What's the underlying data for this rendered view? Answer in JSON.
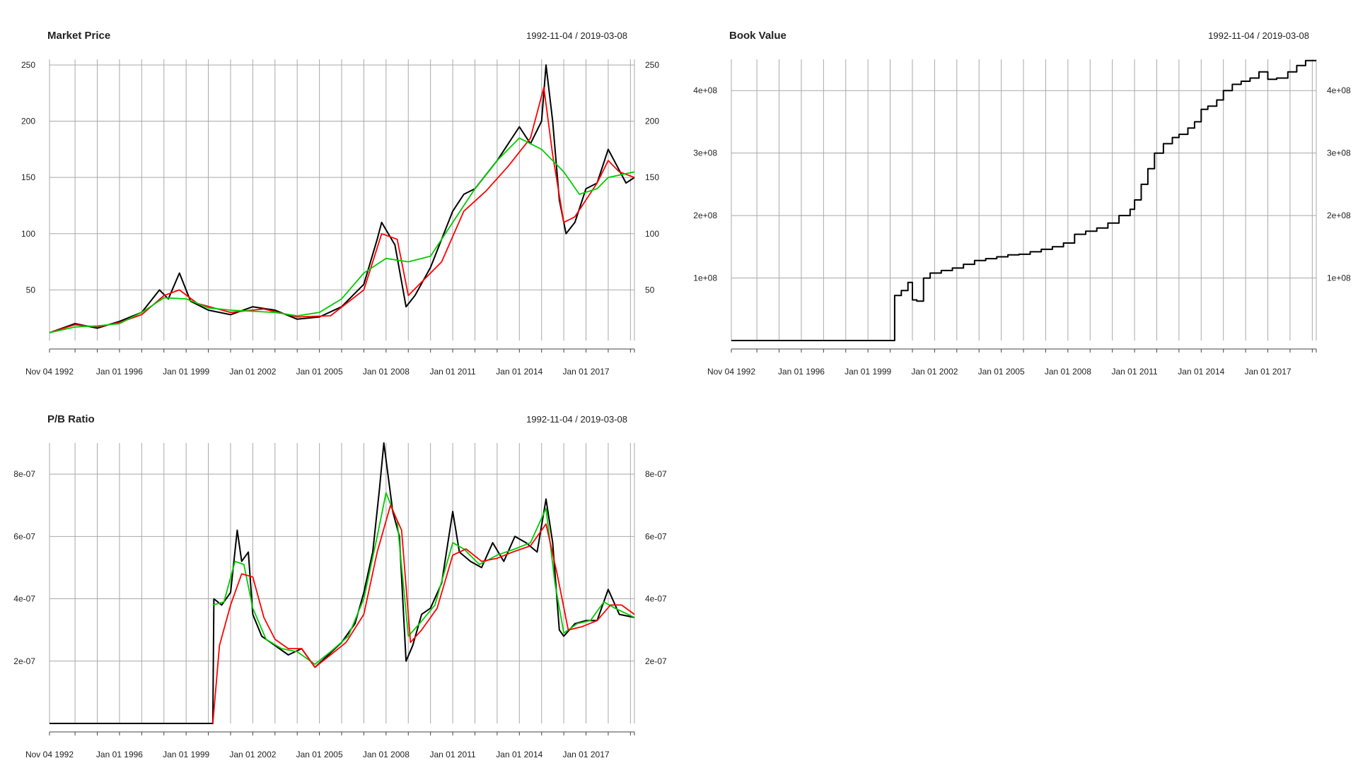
{
  "chart_data": [
    {
      "type": "line",
      "title": "Market Price",
      "date_range": "1992-11-04 / 2019-03-08",
      "x_tick_labels": [
        "Nov 04 1992",
        "Jan 01 1996",
        "Jan 01 1999",
        "Jan 01 2002",
        "Jan 01 2005",
        "Jan 01 2008",
        "Jan 01 2011",
        "Jan 01 2014",
        "Jan 01 2017"
      ],
      "y_tick_labels": [
        "50",
        "100",
        "150",
        "200",
        "250"
      ],
      "y_ticks": [
        50,
        100,
        150,
        200,
        250
      ],
      "ylim": [
        5,
        255
      ],
      "grid": true,
      "series": [
        {
          "color": "#000000",
          "x": [
            1992.85,
            1994.0,
            1995.0,
            1996.0,
            1997.0,
            1997.8,
            1998.2,
            1998.7,
            1999.2,
            2000.0,
            2001.0,
            2002.0,
            2003.0,
            2004.0,
            2005.0,
            2006.0,
            2007.0,
            2007.6,
            2007.8,
            2008.4,
            2008.9,
            2009.3,
            2010.0,
            2011.0,
            2011.5,
            2012.0,
            2013.0,
            2014.0,
            2014.5,
            2015.0,
            2015.2,
            2015.5,
            2015.8,
            2016.1,
            2016.5,
            2017.0,
            2017.5,
            2018.0,
            2018.4,
            2018.8,
            2019.18
          ],
          "y": [
            12,
            20,
            16,
            22,
            30,
            50,
            42,
            65,
            40,
            32,
            28,
            35,
            32,
            24,
            26,
            35,
            55,
            95,
            110,
            90,
            35,
            45,
            70,
            120,
            135,
            140,
            165,
            195,
            180,
            200,
            250,
            200,
            130,
            100,
            110,
            140,
            145,
            175,
            160,
            145,
            150
          ]
        },
        {
          "color": "#ff0000",
          "x": [
            1992.85,
            1994.0,
            1995.0,
            1996.0,
            1997.0,
            1998.0,
            1998.7,
            1999.5,
            2001.0,
            2002.5,
            2004.0,
            2005.5,
            2007.0,
            2007.8,
            2008.5,
            2009.0,
            2009.5,
            2010.5,
            2011.5,
            2012.5,
            2013.5,
            2014.5,
            2015.1,
            2015.5,
            2016.0,
            2016.5,
            2017.5,
            2018.0,
            2018.5,
            2019.18
          ],
          "y": [
            12,
            19,
            17,
            21,
            28,
            45,
            50,
            38,
            30,
            33,
            26,
            27,
            50,
            100,
            95,
            45,
            55,
            75,
            120,
            138,
            160,
            185,
            230,
            170,
            110,
            115,
            145,
            165,
            155,
            150
          ]
        },
        {
          "color": "#00cc00",
          "x": [
            1992.85,
            1994.0,
            1995.0,
            1996.0,
            1997.0,
            1998.0,
            1999.0,
            2000.0,
            2001.0,
            2002.0,
            2003.0,
            2004.0,
            2005.0,
            2006.0,
            2007.0,
            2008.0,
            2009.0,
            2010.0,
            2011.0,
            2012.0,
            2013.0,
            2014.0,
            2015.0,
            2016.0,
            2016.7,
            2017.5,
            2018.0,
            2019.18
          ],
          "y": [
            12,
            17,
            18,
            20,
            30,
            43,
            42,
            34,
            32,
            31,
            30,
            27,
            30,
            42,
            65,
            78,
            75,
            80,
            110,
            140,
            165,
            185,
            175,
            155,
            135,
            140,
            150,
            155
          ]
        }
      ]
    },
    {
      "type": "line",
      "title": "Book Value",
      "date_range": "1992-11-04 / 2019-03-08",
      "x_tick_labels": [
        "Nov 04 1992",
        "Jan 01 1996",
        "Jan 01 1999",
        "Jan 01 2002",
        "Jan 01 2005",
        "Jan 01 2008",
        "Jan 01 2011",
        "Jan 01 2014",
        "Jan 01 2017"
      ],
      "y_tick_labels": [
        "1e+08",
        "2e+08",
        "3e+08",
        "4e+08"
      ],
      "y_ticks": [
        100000000,
        200000000,
        300000000,
        400000000
      ],
      "ylim": [
        0,
        450000000
      ],
      "grid": true,
      "series": [
        {
          "color": "#000000",
          "step": true,
          "x": [
            1992.85,
            2000.2,
            2000.5,
            2000.8,
            2001.0,
            2001.2,
            2001.5,
            2001.8,
            2002.3,
            2002.8,
            2003.3,
            2003.8,
            2004.3,
            2004.8,
            2005.3,
            2005.8,
            2006.3,
            2006.8,
            2007.3,
            2007.8,
            2008.3,
            2008.8,
            2009.3,
            2009.8,
            2010.3,
            2010.8,
            2011.0,
            2011.3,
            2011.6,
            2011.9,
            2012.3,
            2012.7,
            2013.0,
            2013.4,
            2013.7,
            2014.0,
            2014.3,
            2014.7,
            2015.0,
            2015.4,
            2015.8,
            2016.2,
            2016.6,
            2017.0,
            2017.4,
            2017.9,
            2018.3,
            2018.7,
            2019.18
          ],
          "y": [
            0,
            72000000,
            80000000,
            93000000,
            65000000,
            63000000,
            100000000,
            108000000,
            112000000,
            116000000,
            122000000,
            128000000,
            131000000,
            134000000,
            137000000,
            138000000,
            142000000,
            146000000,
            150000000,
            156000000,
            170000000,
            175000000,
            180000000,
            188000000,
            200000000,
            210000000,
            225000000,
            250000000,
            275000000,
            300000000,
            315000000,
            325000000,
            330000000,
            340000000,
            350000000,
            370000000,
            375000000,
            385000000,
            400000000,
            410000000,
            415000000,
            420000000,
            430000000,
            418000000,
            420000000,
            430000000,
            440000000,
            448000000,
            448000000
          ]
        }
      ]
    },
    {
      "type": "line",
      "title": "P/B Ratio",
      "date_range": "1992-11-04 / 2019-03-08",
      "x_tick_labels": [
        "Nov 04 1992",
        "Jan 01 1996",
        "Jan 01 1999",
        "Jan 01 2002",
        "Jan 01 2005",
        "Jan 01 2008",
        "Jan 01 2011",
        "Jan 01 2014",
        "Jan 01 2017"
      ],
      "y_tick_labels": [
        "2e-07",
        "4e-07",
        "6e-07",
        "8e-07"
      ],
      "y_ticks": [
        2e-07,
        4e-07,
        6e-07,
        8e-07
      ],
      "ylim": [
        0,
        9e-07
      ],
      "grid": true,
      "series": [
        {
          "color": "#000000",
          "x": [
            1992.85,
            2000.2,
            2000.25,
            2000.6,
            2001.0,
            2001.3,
            2001.5,
            2001.8,
            2002.0,
            2002.4,
            2003.0,
            2003.6,
            2004.2,
            2004.8,
            2005.4,
            2006.0,
            2006.6,
            2007.0,
            2007.4,
            2007.7,
            2007.9,
            2008.3,
            2008.6,
            2008.9,
            2009.2,
            2009.6,
            2010.0,
            2010.5,
            2011.0,
            2011.3,
            2011.8,
            2012.3,
            2012.8,
            2013.3,
            2013.8,
            2014.3,
            2014.8,
            2015.2,
            2015.5,
            2015.8,
            2016.0,
            2016.5,
            2017.0,
            2017.5,
            2018.0,
            2018.5,
            2019.18
          ],
          "y": [
            0,
            0,
            4e-07,
            3.8e-07,
            4.2e-07,
            6.2e-07,
            5.2e-07,
            5.5e-07,
            3.5e-07,
            2.8e-07,
            2.5e-07,
            2.2e-07,
            2.4e-07,
            1.8e-07,
            2.2e-07,
            2.6e-07,
            3.2e-07,
            4.2e-07,
            5.5e-07,
            7.5e-07,
            9e-07,
            6.8e-07,
            6e-07,
            2e-07,
            2.5e-07,
            3.5e-07,
            3.7e-07,
            4.5e-07,
            6.8e-07,
            5.5e-07,
            5.2e-07,
            5e-07,
            5.8e-07,
            5.2e-07,
            6e-07,
            5.8e-07,
            5.5e-07,
            7.2e-07,
            5.8e-07,
            3e-07,
            2.8e-07,
            3.2e-07,
            3.3e-07,
            3.3e-07,
            4.3e-07,
            3.5e-07,
            3.4e-07
          ]
        },
        {
          "color": "#00cc00",
          "x": [
            2000.2,
            2000.7,
            2001.2,
            2001.6,
            2002.0,
            2002.6,
            2003.3,
            2004.0,
            2004.8,
            2005.5,
            2006.3,
            2007.0,
            2007.6,
            2008.0,
            2008.5,
            2009.0,
            2009.5,
            2010.2,
            2011.0,
            2011.5,
            2012.2,
            2013.0,
            2013.8,
            2014.5,
            2015.2,
            2015.6,
            2016.0,
            2016.6,
            2017.2,
            2017.8,
            2018.3,
            2019.18
          ],
          "y": [
            3.8e-07,
            3.9e-07,
            5.2e-07,
            5.1e-07,
            3.7e-07,
            2.7e-07,
            2.4e-07,
            2.3e-07,
            1.9e-07,
            2.3e-07,
            2.8e-07,
            4e-07,
            6e-07,
            7.4e-07,
            6.5e-07,
            2.8e-07,
            3.2e-07,
            3.8e-07,
            5.8e-07,
            5.6e-07,
            5.1e-07,
            5.4e-07,
            5.6e-07,
            5.8e-07,
            6.9e-07,
            4.5e-07,
            2.9e-07,
            3.2e-07,
            3.3e-07,
            3.9e-07,
            3.7e-07,
            3.4e-07
          ]
        },
        {
          "color": "#ff0000",
          "x": [
            2000.2,
            2000.5,
            2001.0,
            2001.5,
            2002.0,
            2002.5,
            2003.0,
            2003.6,
            2004.2,
            2004.8,
            2005.5,
            2006.2,
            2007.0,
            2007.6,
            2008.2,
            2008.7,
            2009.1,
            2009.6,
            2010.3,
            2011.0,
            2011.6,
            2012.3,
            2013.0,
            2013.7,
            2014.5,
            2015.2,
            2015.7,
            2016.2,
            2016.8,
            2017.5,
            2018.1,
            2018.6,
            2019.18
          ],
          "y": [
            0,
            2.5e-07,
            3.8e-07,
            4.8e-07,
            4.7e-07,
            3.4e-07,
            2.7e-07,
            2.4e-07,
            2.4e-07,
            1.8e-07,
            2.2e-07,
            2.6e-07,
            3.5e-07,
            5.5e-07,
            7e-07,
            6.2e-07,
            2.6e-07,
            3e-07,
            3.7e-07,
            5.4e-07,
            5.6e-07,
            5.2e-07,
            5.3e-07,
            5.5e-07,
            5.7e-07,
            6.4e-07,
            4.8e-07,
            3e-07,
            3.1e-07,
            3.3e-07,
            3.8e-07,
            3.8e-07,
            3.5e-07
          ]
        }
      ]
    }
  ]
}
